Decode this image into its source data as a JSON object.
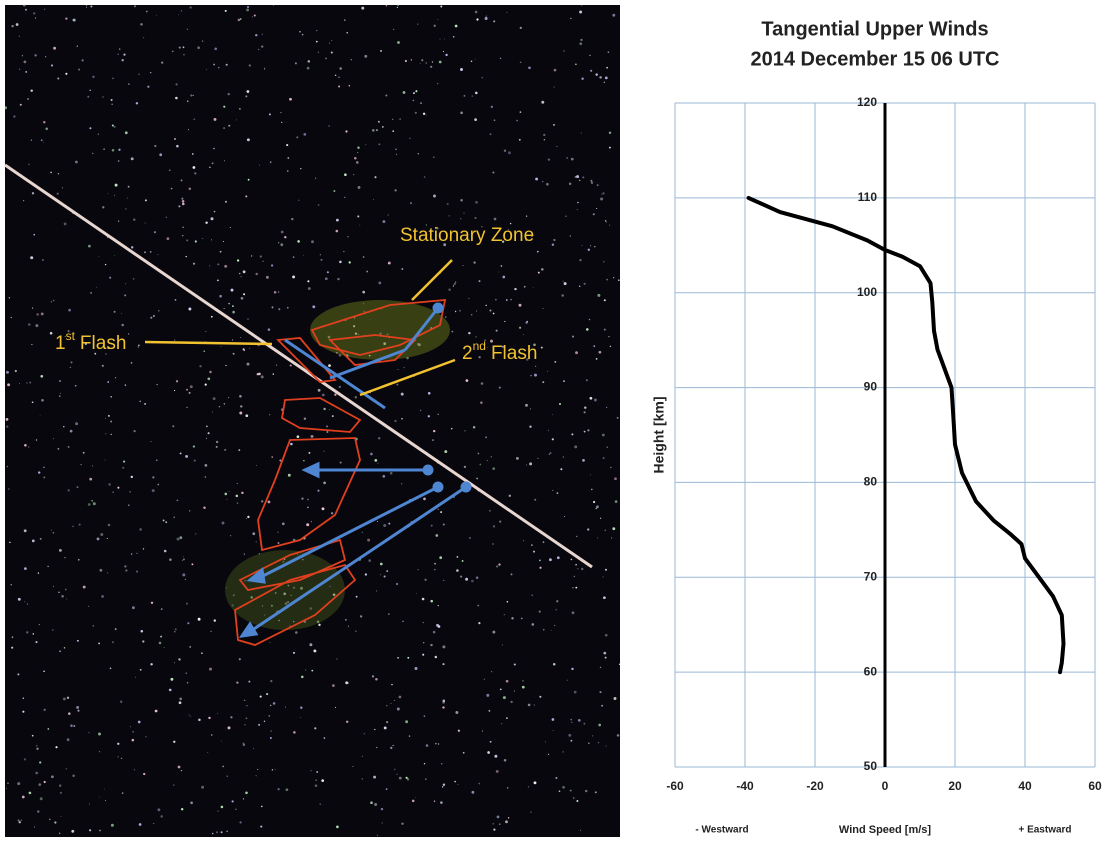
{
  "image": {
    "labels": [
      {
        "text": "Stationary Zone"
      },
      {
        "number": "1",
        "suffix": "st",
        "text": "Flash"
      },
      {
        "number": "2",
        "suffix": "nd",
        "text": "Flash"
      }
    ]
  },
  "chart_data": {
    "type": "line",
    "title": "Tangential Upper Winds",
    "subtitle": "2014 December 15 06 UTC",
    "x_label": "Wind Speed [m/s]",
    "y_label": "Height [km]",
    "annotations": [
      "- Westward",
      "+ Eastward"
    ],
    "x": [
      -39,
      -30,
      -15,
      -5,
      0,
      5,
      10,
      13,
      13.5,
      14,
      15,
      17,
      19,
      19.5,
      20,
      22,
      26,
      31,
      36,
      39,
      40,
      44,
      48,
      50.5,
      51,
      50.5,
      50
    ],
    "values": [
      110,
      108.5,
      107,
      105.5,
      104.5,
      103.8,
      102.8,
      101,
      99,
      96,
      94,
      92,
      90,
      87,
      84,
      81,
      78,
      76,
      74.5,
      73.5,
      72,
      70,
      68,
      66,
      63,
      61,
      60
    ],
    "color": "#000000",
    "xlim": [
      -60,
      60
    ],
    "xticks": [
      -60,
      -40,
      -20,
      0,
      20,
      40,
      60
    ],
    "ylim": [
      50,
      120
    ],
    "yticks": [
      50,
      60,
      70,
      80,
      90,
      100,
      110,
      120
    ],
    "grid": true
  }
}
